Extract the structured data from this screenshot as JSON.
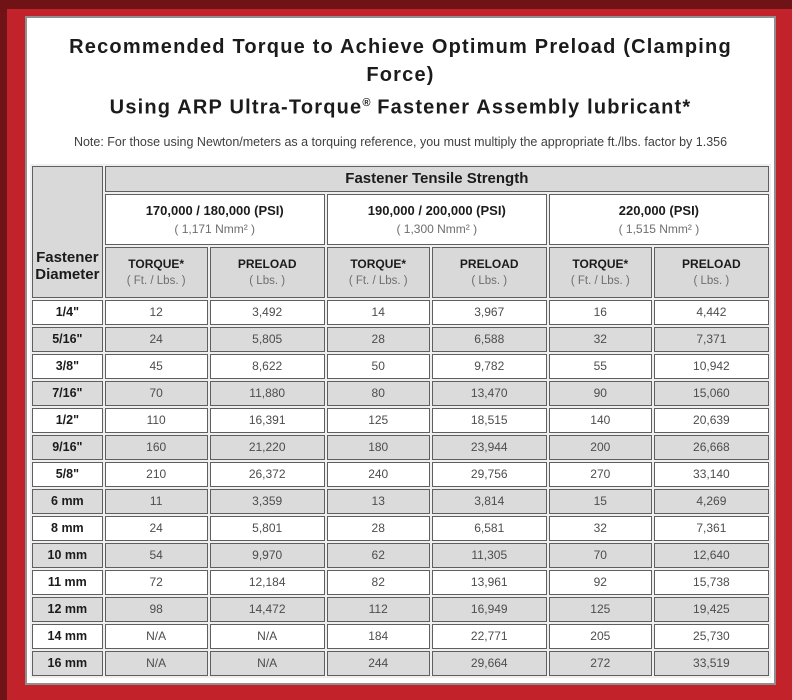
{
  "title": {
    "line1": "Recommended Torque to Achieve Optimum Preload (Clamping Force)",
    "line2_pre": "Using ARP Ultra-Torque",
    "line2_sup": "®",
    "line2_post": " Fastener Assembly lubricant*"
  },
  "note": "Note: For those using Newton/meters as a torquing reference, you must multiply the appropriate ft./lbs. factor by 1.356",
  "table": {
    "corner_line1": "Fastener",
    "corner_line2": "Diameter",
    "tensile_header": "Fastener Tensile Strength",
    "strength_groups": [
      {
        "psi": "170,000 / 180,000 (PSI)",
        "nmm": "( 1,171 Nmm² )"
      },
      {
        "psi": "190,000 / 200,000 (PSI)",
        "nmm": "( 1,300 Nmm² )"
      },
      {
        "psi": "220,000 (PSI)",
        "nmm": "( 1,515 Nmm² )"
      }
    ],
    "sub_headers": {
      "torque": "TORQUE*",
      "torque_unit": "( Ft. / Lbs. )",
      "preload": "PRELOAD",
      "preload_unit": "( Lbs. )"
    },
    "rows": [
      {
        "dia": "1/4\"",
        "values": [
          "12",
          "3,492",
          "14",
          "3,967",
          "16",
          "4,442"
        ]
      },
      {
        "dia": "5/16\"",
        "values": [
          "24",
          "5,805",
          "28",
          "6,588",
          "32",
          "7,371"
        ]
      },
      {
        "dia": "3/8\"",
        "values": [
          "45",
          "8,622",
          "50",
          "9,782",
          "55",
          "10,942"
        ]
      },
      {
        "dia": "7/16\"",
        "values": [
          "70",
          "11,880",
          "80",
          "13,470",
          "90",
          "15,060"
        ]
      },
      {
        "dia": "1/2\"",
        "values": [
          "110",
          "16,391",
          "125",
          "18,515",
          "140",
          "20,639"
        ]
      },
      {
        "dia": "9/16\"",
        "values": [
          "160",
          "21,220",
          "180",
          "23,944",
          "200",
          "26,668"
        ]
      },
      {
        "dia": "5/8\"",
        "values": [
          "210",
          "26,372",
          "240",
          "29,756",
          "270",
          "33,140"
        ]
      },
      {
        "dia": "6 mm",
        "values": [
          "11",
          "3,359",
          "13",
          "3,814",
          "15",
          "4,269"
        ]
      },
      {
        "dia": "8 mm",
        "values": [
          "24",
          "5,801",
          "28",
          "6,581",
          "32",
          "7,361"
        ]
      },
      {
        "dia": "10 mm",
        "values": [
          "54",
          "9,970",
          "62",
          "11,305",
          "70",
          "12,640"
        ]
      },
      {
        "dia": "11 mm",
        "values": [
          "72",
          "12,184",
          "82",
          "13,961",
          "92",
          "15,738"
        ]
      },
      {
        "dia": "12 mm",
        "values": [
          "98",
          "14,472",
          "112",
          "16,949",
          "125",
          "19,425"
        ]
      },
      {
        "dia": "14 mm",
        "values": [
          "N/A",
          "N/A",
          "184",
          "22,771",
          "205",
          "25,730"
        ]
      },
      {
        "dia": "16 mm",
        "values": [
          "N/A",
          "N/A",
          "244",
          "29,664",
          "272",
          "33,519"
        ]
      }
    ]
  },
  "colors": {
    "frame_red": "#c2222a",
    "frame_maroon": "#6f1316",
    "panel_border_gray": "#8f8f8f",
    "header_gray": "#d9d9d9",
    "stripe_gray": "#dbdbdb",
    "cell_border": "#5f5f5f"
  }
}
